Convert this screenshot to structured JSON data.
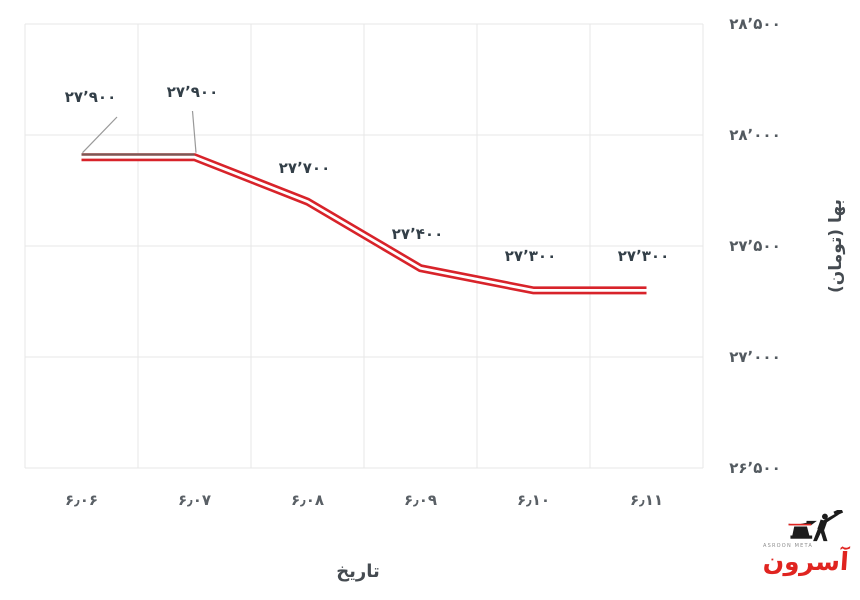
{
  "chart_data": {
    "type": "line",
    "categories": [
      "۶٫۰۶",
      "۶٫۰۷",
      "۶٫۰۸",
      "۶٫۰۹",
      "۶٫۱۰",
      "۶٫۱۱"
    ],
    "values": [
      27900,
      27900,
      27700,
      27400,
      27300,
      27300
    ],
    "point_labels": [
      "۲۷٬۹۰۰",
      "۲۷٬۹۰۰",
      "۲۷٬۷۰۰",
      "۲۷٬۴۰۰",
      "۲۷٬۳۰۰",
      "۲۷٬۳۰۰"
    ],
    "xlabel": "تاریخ",
    "ylabel": "بها (تومان)",
    "ylim": [
      26500,
      28500
    ],
    "ytick_values": [
      28500,
      28000,
      27500,
      27000,
      26500
    ],
    "ytick_labels": [
      "۲۸٬۵۰۰",
      "۲۸٬۰۰۰",
      "۲۷٬۵۰۰",
      "۲۷٬۰۰۰",
      "۲۶٬۵۰۰"
    ],
    "grid": true,
    "legend": "none",
    "y_axis_side": "right",
    "line_color": "#d8232a",
    "line_inner_color": "#ffffff",
    "grid_color": "#e7e7e7",
    "label_color": "#333f48",
    "tick_color": "#535a60",
    "connector_color": "#999999"
  },
  "watermark": {
    "brand_fa": "آسرون",
    "brand_en": "ASROON META"
  }
}
